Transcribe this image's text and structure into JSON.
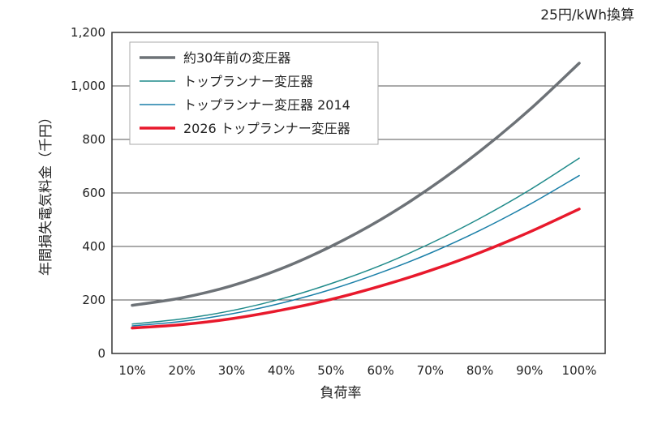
{
  "chart_data": {
    "type": "line",
    "unit_note": "25円/kWh換算",
    "xlabel": "負荷率",
    "ylabel": "年間損失電気料金（千円）",
    "x": [
      "10%",
      "20%",
      "30%",
      "40%",
      "50%",
      "60%",
      "70%",
      "80%",
      "90%",
      "100%"
    ],
    "ylim": [
      0,
      1200
    ],
    "yticks": [
      "0",
      "200",
      "400",
      "600",
      "800",
      "1,000",
      "1,200"
    ],
    "ytick_values": [
      0,
      200,
      400,
      600,
      800,
      1000,
      1200
    ],
    "grid": true,
    "legend_position": "top-left",
    "series": [
      {
        "name": "約30年前の変圧器",
        "color": "#6d7277",
        "width": 3.5,
        "values": [
          180,
          208,
          253,
          317,
          400,
          500,
          619,
          756,
          911,
          1085
        ]
      },
      {
        "name": "トップランナー変圧器",
        "color": "#1f8a8a",
        "width": 1.5,
        "values": [
          110,
          129,
          160,
          204,
          261,
          329,
          411,
          505,
          611,
          730
        ]
      },
      {
        "name": "トップランナー変圧器 2014",
        "color": "#1a7fa8",
        "width": 1.5,
        "values": [
          103,
          120,
          148,
          188,
          239,
          302,
          375,
          460,
          557,
          665
        ]
      },
      {
        "name": "2026 トップランナー変圧器",
        "color": "#e8192c",
        "width": 3.5,
        "values": [
          95,
          108,
          130,
          162,
          202,
          252,
          310,
          377,
          454,
          540
        ]
      }
    ]
  }
}
